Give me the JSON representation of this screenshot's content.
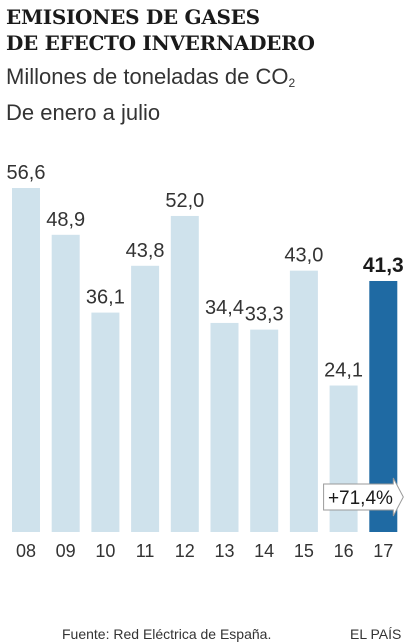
{
  "header": {
    "title_line1": "EMISIONES DE GASES",
    "title_line2": "DE EFECTO INVERNADERO",
    "subtitle_line1_main": "Millones de toneladas de CO",
    "subtitle_line1_sub": "2",
    "subtitle_line2": "De enero a julio"
  },
  "footer": {
    "source": "Fuente: Red Eléctrica de España.",
    "brand": "EL PAÍS"
  },
  "colors": {
    "bar": "#cfe2ec",
    "highlight": "#1f6aa3",
    "text": "#333333"
  },
  "chart_data": {
    "type": "bar",
    "categories": [
      "08",
      "09",
      "10",
      "11",
      "12",
      "13",
      "14",
      "15",
      "16",
      "17"
    ],
    "values": [
      56.6,
      48.9,
      36.1,
      43.8,
      52.0,
      34.4,
      33.3,
      43.0,
      24.1,
      41.3
    ],
    "value_labels": [
      "56,6",
      "48,9",
      "36,1",
      "43,8",
      "52,0",
      "34,4",
      "33,3",
      "43,0",
      "24,1",
      "41,3"
    ],
    "highlight_index": 9,
    "ylim": [
      0,
      56.6
    ],
    "grid": false,
    "annotation": {
      "text": "+71,4%",
      "from_index": 8,
      "to_index": 9
    }
  }
}
